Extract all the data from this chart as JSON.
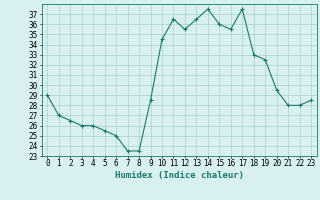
{
  "x": [
    0,
    1,
    2,
    3,
    4,
    5,
    6,
    7,
    8,
    9,
    10,
    11,
    12,
    13,
    14,
    15,
    16,
    17,
    18,
    19,
    20,
    21,
    22,
    23
  ],
  "y": [
    29.0,
    27.0,
    26.5,
    26.0,
    26.0,
    25.5,
    25.0,
    23.5,
    23.5,
    28.5,
    34.5,
    36.5,
    35.5,
    36.5,
    37.5,
    36.0,
    35.5,
    37.5,
    33.0,
    32.5,
    29.5,
    28.0,
    28.0,
    28.5
  ],
  "line_color": "#1a7a6a",
  "marker": "+",
  "marker_size": 3,
  "bg_color": "#d8f0f0",
  "grid_color": "#aacfcf",
  "xlabel": "Humidex (Indice chaleur)",
  "ylim": [
    23,
    38
  ],
  "xlim": [
    -0.5,
    23.5
  ],
  "yticks": [
    23,
    24,
    25,
    26,
    27,
    28,
    29,
    30,
    31,
    32,
    33,
    34,
    35,
    36,
    37
  ],
  "xticks": [
    0,
    1,
    2,
    3,
    4,
    5,
    6,
    7,
    8,
    9,
    10,
    11,
    12,
    13,
    14,
    15,
    16,
    17,
    18,
    19,
    20,
    21,
    22,
    23
  ],
  "tick_fontsize": 5.5,
  "label_fontsize": 6.5
}
